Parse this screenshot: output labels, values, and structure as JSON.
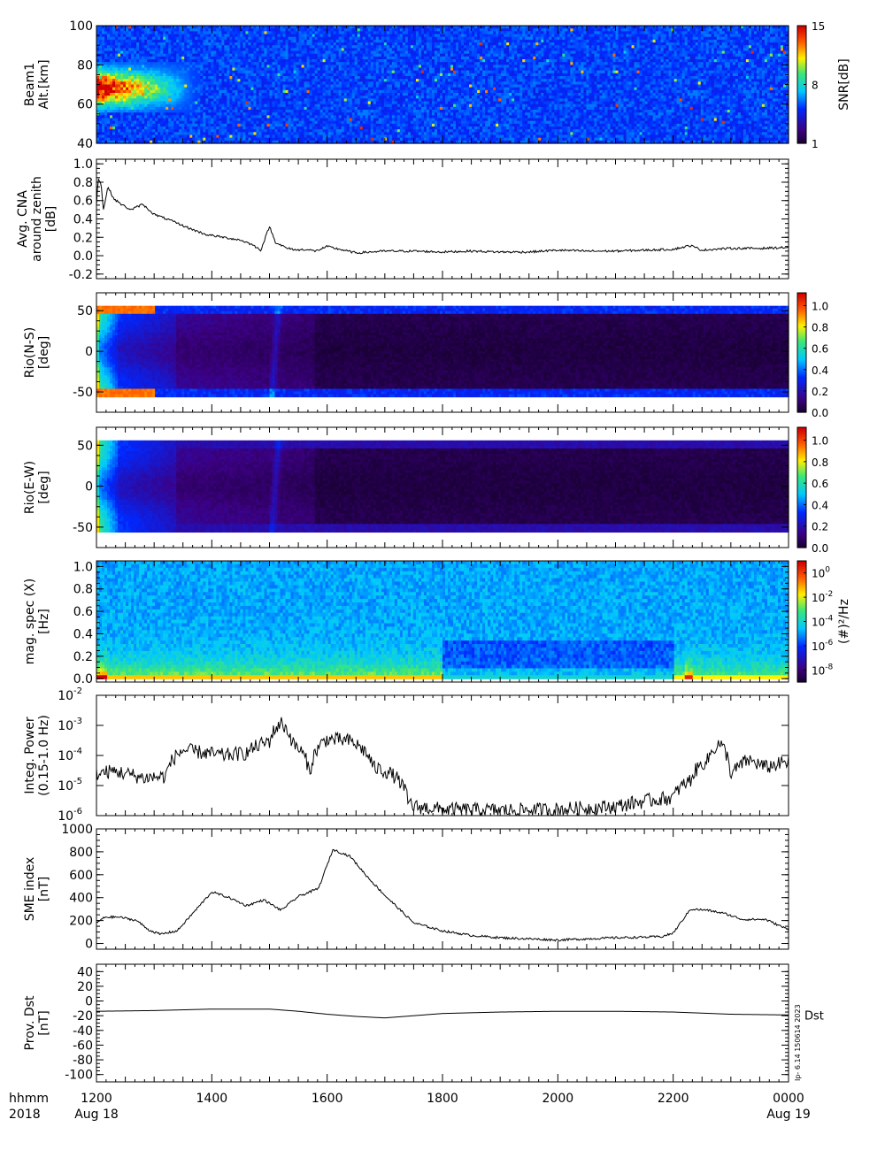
{
  "chart_data": [
    {
      "type": "heatmap",
      "ylabel_lines": [
        "Beam1",
        "Alt.[km]"
      ],
      "ylim": [
        40,
        100
      ],
      "yticks": [
        {
          "v": 40,
          "t": "40"
        },
        {
          "v": 60,
          "t": "60"
        },
        {
          "v": 80,
          "t": "80"
        },
        {
          "v": 100,
          "t": "100"
        }
      ],
      "colorbar": {
        "label": "SNR[dB]",
        "range": [
          1,
          15
        ],
        "ticks": [
          {
            "v": 1,
            "t": "1"
          },
          {
            "v": 8,
            "t": "8"
          },
          {
            "v": 15,
            "t": "15"
          }
        ]
      },
      "pattern": "beam"
    },
    {
      "type": "line",
      "ylabel_lines": [
        "Avg. CNA",
        "around zenith",
        "[dB]"
      ],
      "ylim": [
        -0.25,
        1.05
      ],
      "yticks": [
        {
          "v": -0.2,
          "t": "-0.2"
        },
        {
          "v": 0,
          "t": "0.0"
        },
        {
          "v": 0.2,
          "t": "0.2"
        },
        {
          "v": 0.4,
          "t": "0.4"
        },
        {
          "v": 0.6,
          "t": "0.6"
        },
        {
          "v": 0.8,
          "t": "0.8"
        },
        {
          "v": 1.0,
          "t": "1.0"
        }
      ],
      "x": [
        0,
        0.03,
        0.08,
        0.12,
        0.2,
        0.3,
        0.45,
        0.6,
        0.8,
        1.0,
        1.3,
        1.6,
        1.9,
        2.2,
        2.5,
        2.7,
        2.85,
        3.0,
        3.1,
        3.3,
        3.5,
        3.6,
        3.8,
        4.0,
        4.5,
        5.0,
        5.5,
        6.0,
        6.5,
        7.0,
        7.5,
        8.0,
        8.5,
        9.0,
        9.5,
        10.0,
        10.3,
        10.5,
        10.7,
        11.0,
        11.5,
        12.0
      ],
      "y": [
        0.55,
        0.85,
        0.78,
        0.5,
        0.75,
        0.62,
        0.55,
        0.5,
        0.56,
        0.45,
        0.38,
        0.3,
        0.23,
        0.2,
        0.17,
        0.12,
        0.06,
        0.32,
        0.15,
        0.08,
        0.06,
        0.07,
        0.05,
        0.1,
        0.03,
        0.05,
        0.05,
        0.04,
        0.05,
        0.04,
        0.04,
        0.06,
        0.05,
        0.05,
        0.06,
        0.07,
        0.11,
        0.06,
        0.07,
        0.08,
        0.08,
        0.09
      ],
      "noise": 0.012
    },
    {
      "type": "heatmap",
      "ylabel_lines": [
        "Rio(N-S)",
        "[deg]"
      ],
      "ylim": [
        -75,
        72
      ],
      "data_range": [
        -56,
        56
      ],
      "yticks": [
        {
          "v": -50,
          "t": "-50"
        },
        {
          "v": 0,
          "t": "0"
        },
        {
          "v": 50,
          "t": "50"
        }
      ],
      "colorbar": {
        "label": "",
        "range": [
          0,
          1.12
        ],
        "ticks": [
          {
            "v": 0,
            "t": "0.0"
          },
          {
            "v": 0.2,
            "t": "0.2"
          },
          {
            "v": 0.4,
            "t": "0.4"
          },
          {
            "v": 0.6,
            "t": "0.6"
          },
          {
            "v": 0.8,
            "t": "0.8"
          },
          {
            "v": 1.0,
            "t": "1.0"
          }
        ]
      },
      "pattern": "riometer_ns"
    },
    {
      "type": "heatmap",
      "ylabel_lines": [
        "Rio(E-W)",
        "[deg]"
      ],
      "ylim": [
        -75,
        72
      ],
      "data_range": [
        -56,
        56
      ],
      "yticks": [
        {
          "v": -50,
          "t": "-50"
        },
        {
          "v": 0,
          "t": "0"
        },
        {
          "v": 50,
          "t": "50"
        }
      ],
      "colorbar": {
        "label": "",
        "range": [
          0,
          1.12
        ],
        "ticks": [
          {
            "v": 0,
            "t": "0.0"
          },
          {
            "v": 0.2,
            "t": "0.2"
          },
          {
            "v": 0.4,
            "t": "0.4"
          },
          {
            "v": 0.6,
            "t": "0.6"
          },
          {
            "v": 0.8,
            "t": "0.8"
          },
          {
            "v": 1.0,
            "t": "1.0"
          }
        ]
      },
      "pattern": "riometer_ew"
    },
    {
      "type": "heatmap",
      "ylabel_lines": [
        "mag. spec (X)",
        "[Hz]"
      ],
      "ylim": [
        -0.03,
        1.05
      ],
      "data_range": [
        0,
        1.05
      ],
      "yticks": [
        {
          "v": 0,
          "t": "0.0"
        },
        {
          "v": 0.2,
          "t": "0.2"
        },
        {
          "v": 0.4,
          "t": "0.4"
        },
        {
          "v": 0.6,
          "t": "0.6"
        },
        {
          "v": 0.8,
          "t": "0.8"
        },
        {
          "v": 1.0,
          "t": "1.0"
        }
      ],
      "colorbar": {
        "label": "(#)²/Hz",
        "scale": "log",
        "range": [
          1e-09,
          10.0
        ],
        "ticks": [
          {
            "v": 1.0,
            "t": "10",
            "e": "0"
          },
          {
            "v": 0.01,
            "t": "10",
            "e": "-2"
          },
          {
            "v": 0.0001,
            "t": "10",
            "e": "-4"
          },
          {
            "v": 1e-06,
            "t": "10",
            "e": "-6"
          },
          {
            "v": 1e-08,
            "t": "10",
            "e": "-8"
          }
        ]
      },
      "pattern": "magspec"
    },
    {
      "type": "line",
      "scale": "log",
      "ylabel_lines": [
        "Integ. Power",
        "(0.15-1.0 Hz)"
      ],
      "ylim": [
        1e-06,
        0.01
      ],
      "yticks": [
        {
          "v": 1e-06,
          "t": "10",
          "e": "-6"
        },
        {
          "v": 1e-05,
          "t": "10",
          "e": "-5"
        },
        {
          "v": 0.0001,
          "t": "10",
          "e": "-4"
        },
        {
          "v": 0.001,
          "t": "10",
          "e": "-3"
        },
        {
          "v": 0.01,
          "t": "10",
          "e": "-2"
        }
      ],
      "x": [
        0,
        0.3,
        0.8,
        1.2,
        1.5,
        1.9,
        2.2,
        2.6,
        3.0,
        3.2,
        3.4,
        3.7,
        4.0,
        4.4,
        4.8,
        5.1,
        5.4,
        5.5,
        6.0,
        7.0,
        8.0,
        9.0,
        10.0,
        10.3,
        10.6,
        10.8,
        11.0,
        11.3,
        11.6,
        12.0
      ],
      "y": [
        2.5e-05,
        3e-05,
        1.8e-05,
        2e-05,
        0.00015,
        0.00012,
        0.0001,
        0.00012,
        0.0003,
        0.0012,
        0.00025,
        2e-05,
        0.00035,
        0.0003,
        4e-05,
        2.5e-05,
        3e-06,
        2e-06,
        1.6e-06,
        1.5e-06,
        1.6e-06,
        2e-06,
        4e-06,
        1.5e-05,
        7e-05,
        0.00025,
        2e-05,
        7e-05,
        4e-05,
        6e-05
      ],
      "noise": 0.22
    },
    {
      "type": "line",
      "ylabel_lines": [
        "SME index",
        "[nT]"
      ],
      "ylim": [
        -50,
        1000
      ],
      "yticks": [
        {
          "v": 0,
          "t": "0"
        },
        {
          "v": 200,
          "t": "200"
        },
        {
          "v": 400,
          "t": "400"
        },
        {
          "v": 600,
          "t": "600"
        },
        {
          "v": 800,
          "t": "800"
        },
        {
          "v": 1000,
          "t": "1000"
        }
      ],
      "x": [
        0,
        0.15,
        0.4,
        0.7,
        0.9,
        1.1,
        1.4,
        1.7,
        2.0,
        2.3,
        2.6,
        2.9,
        3.2,
        3.5,
        3.85,
        4.1,
        4.4,
        4.7,
        5.0,
        5.5,
        6.0,
        6.5,
        7.0,
        7.5,
        8.0,
        8.5,
        9.0,
        9.5,
        9.8,
        10.0,
        10.3,
        10.6,
        10.9,
        11.2,
        11.6,
        12.0
      ],
      "y": [
        180,
        230,
        230,
        200,
        120,
        80,
        110,
        280,
        450,
        400,
        330,
        380,
        290,
        410,
        480,
        820,
        760,
        580,
        420,
        180,
        110,
        70,
        50,
        40,
        30,
        40,
        50,
        55,
        60,
        90,
        300,
        290,
        260,
        210,
        210,
        120
      ],
      "noise": 10
    },
    {
      "type": "line",
      "ylabel_lines": [
        "Prov. Dst",
        "[nT]"
      ],
      "ylim": [
        -110,
        50
      ],
      "yticks": [
        {
          "v": -100,
          "t": "-100"
        },
        {
          "v": -80,
          "t": "-80"
        },
        {
          "v": -60,
          "t": "-60"
        },
        {
          "v": -40,
          "t": "-40"
        },
        {
          "v": -20,
          "t": "-20"
        },
        {
          "v": 0,
          "t": "0"
        },
        {
          "v": 20,
          "t": "20"
        },
        {
          "v": 40,
          "t": "40"
        }
      ],
      "x": [
        0,
        1,
        2,
        3,
        3.5,
        4,
        4.5,
        5,
        5.5,
        6,
        7,
        8,
        9,
        10,
        11,
        12
      ],
      "y": [
        -14,
        -13,
        -11,
        -11,
        -14,
        -18,
        -21,
        -23,
        -20,
        -17,
        -15,
        -14,
        -14,
        -15,
        -18,
        -19
      ],
      "noise": 0,
      "series_label": "Dst"
    }
  ],
  "x_axis": {
    "header_top": "hhmm",
    "header_bottom": "2018",
    "ticks": [
      {
        "hour": 0,
        "label": "1200",
        "sub": "Aug 18"
      },
      {
        "hour": 2,
        "label": "1400",
        "sub": ""
      },
      {
        "hour": 4,
        "label": "1600",
        "sub": ""
      },
      {
        "hour": 6,
        "label": "1800",
        "sub": ""
      },
      {
        "hour": 8,
        "label": "2000",
        "sub": ""
      },
      {
        "hour": 10,
        "label": "2200",
        "sub": ""
      },
      {
        "hour": 12,
        "label": "0000",
        "sub": "Aug 19"
      }
    ]
  },
  "credit": "Ip- 6.14 150614 2023"
}
